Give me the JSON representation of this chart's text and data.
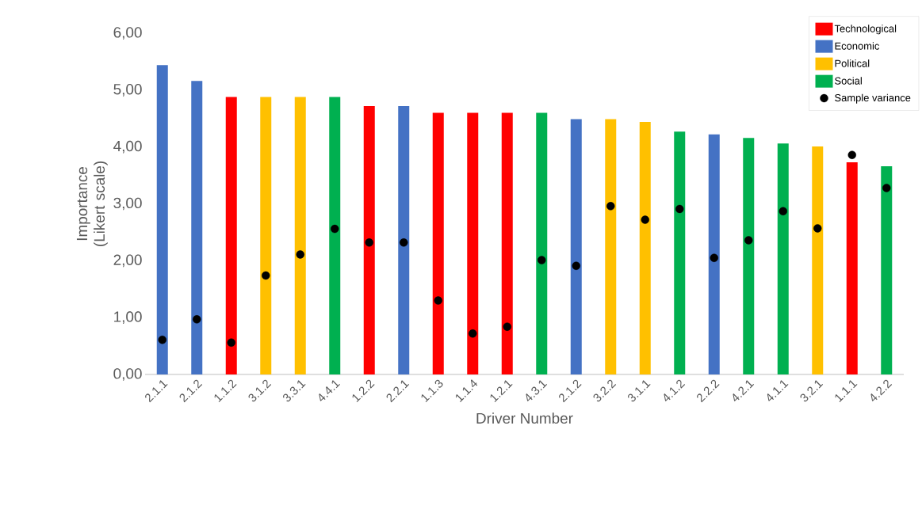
{
  "chart_data": {
    "type": "bar",
    "xlabel": "Driver Number",
    "ylabel": "Importance (Likert scale)",
    "categories": [
      "2.1.1",
      "2.1.2",
      "1.1.2",
      "3.1.2",
      "3.3.1",
      "4.4.1",
      "1.2.2",
      "2.2.1",
      "1.1.3",
      "1.1.4",
      "1.2.1",
      "4.3.1",
      "2.1.2",
      "3.2.2",
      "3.1.1",
      "4.1.2",
      "2.2.2",
      "4.2.1",
      "4.1.1",
      "3.2.1",
      "1.1.1",
      "4.2.2"
    ],
    "series": [
      {
        "name": "Technological",
        "color": "#ff0000",
        "values": [
          null,
          null,
          4.88,
          null,
          null,
          null,
          4.72,
          null,
          4.6,
          4.6,
          4.6,
          null,
          null,
          null,
          null,
          null,
          null,
          null,
          null,
          null,
          3.73,
          null
        ]
      },
      {
        "name": "Economic",
        "color": "#4472c4",
        "values": [
          5.44,
          5.16,
          null,
          null,
          null,
          null,
          null,
          4.72,
          null,
          null,
          null,
          null,
          4.49,
          null,
          null,
          null,
          4.22,
          null,
          null,
          null,
          null,
          null
        ]
      },
      {
        "name": "Political",
        "color": "#ffc000",
        "values": [
          null,
          null,
          null,
          4.88,
          4.88,
          null,
          null,
          null,
          null,
          null,
          null,
          null,
          null,
          4.49,
          4.44,
          null,
          null,
          null,
          null,
          4.01,
          null,
          null
        ]
      },
      {
        "name": "Social",
        "color": "#00b050",
        "values": [
          null,
          null,
          null,
          null,
          null,
          4.88,
          null,
          null,
          null,
          null,
          null,
          4.6,
          null,
          null,
          null,
          4.27,
          null,
          4.16,
          4.06,
          null,
          null,
          3.66
        ]
      },
      {
        "name": "Sample variance",
        "type": "scatter",
        "color": "#000000",
        "values": [
          0.61,
          0.97,
          0.56,
          1.74,
          2.11,
          2.56,
          2.32,
          2.32,
          1.3,
          0.72,
          0.84,
          2.01,
          1.91,
          2.96,
          2.72,
          2.91,
          2.05,
          2.36,
          2.87,
          2.57,
          3.86,
          3.28
        ]
      }
    ],
    "ylim": [
      0,
      6
    ],
    "yticks": [
      {
        "value": 0,
        "label": "0,00"
      },
      {
        "value": 1,
        "label": "1,00"
      },
      {
        "value": 2,
        "label": "2,00"
      },
      {
        "value": 3,
        "label": "3,00"
      },
      {
        "value": 4,
        "label": "4,00"
      },
      {
        "value": 5,
        "label": "5,00"
      },
      {
        "value": 6,
        "label": "6,00"
      }
    ],
    "legend": "top right",
    "grid": false
  }
}
